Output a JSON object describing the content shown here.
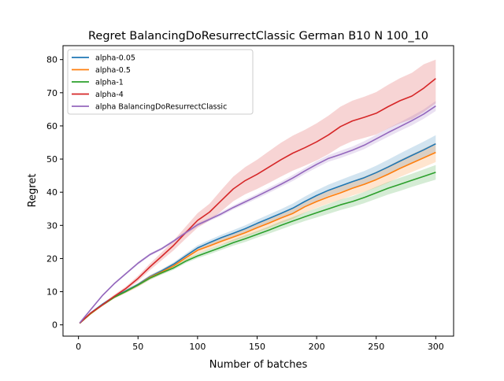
{
  "chart_data": {
    "type": "line",
    "title": "Regret BalancingDoResurrectClassic German B10 N 100_10",
    "xlabel": "Number of batches",
    "ylabel": "Regret",
    "xlim": [
      -13,
      315
    ],
    "ylim": [
      -3.4,
      84.2
    ],
    "xticks": [
      0,
      50,
      100,
      150,
      200,
      250,
      300
    ],
    "yticks": [
      0,
      10,
      20,
      30,
      40,
      50,
      60,
      70,
      80
    ],
    "grid": false,
    "legend_position": "upper-left",
    "series": [
      {
        "name": "alpha-0.05",
        "color": "#1f77b4",
        "x": [
          1,
          10,
          20,
          30,
          40,
          50,
          60,
          70,
          80,
          90,
          100,
          110,
          120,
          130,
          140,
          150,
          160,
          170,
          180,
          190,
          200,
          210,
          220,
          230,
          240,
          250,
          260,
          270,
          280,
          290,
          300
        ],
        "y": [
          0.5,
          3.5,
          6.2,
          8.5,
          10.3,
          12.2,
          14.5,
          16.3,
          18.3,
          20.8,
          23.2,
          24.8,
          26.3,
          27.6,
          29.0,
          30.6,
          32.1,
          33.6,
          35.2,
          37.2,
          39.0,
          40.6,
          41.9,
          43.2,
          44.4,
          45.9,
          47.6,
          49.4,
          51.1,
          52.8,
          54.6
        ],
        "lower": [
          0.4,
          3.2,
          5.9,
          8.2,
          10.0,
          11.8,
          14.0,
          15.8,
          17.7,
          20.1,
          22.4,
          24.0,
          25.4,
          26.6,
          28.0,
          29.5,
          30.9,
          32.3,
          33.8,
          35.7,
          37.4,
          38.9,
          40.1,
          41.3,
          42.4,
          43.8,
          45.4,
          47.1,
          48.7,
          50.3,
          52.0
        ],
        "upper": [
          0.6,
          3.8,
          6.5,
          8.8,
          10.6,
          12.6,
          15.0,
          16.8,
          18.9,
          21.5,
          24.0,
          25.6,
          27.2,
          28.6,
          30.0,
          31.7,
          33.3,
          34.9,
          36.6,
          38.7,
          40.6,
          42.3,
          43.7,
          45.1,
          46.4,
          48.0,
          49.8,
          51.7,
          53.5,
          55.3,
          57.2
        ]
      },
      {
        "name": "alpha-0.5",
        "color": "#ff7f0e",
        "x": [
          1,
          10,
          20,
          30,
          40,
          50,
          60,
          70,
          80,
          90,
          100,
          110,
          120,
          130,
          140,
          150,
          160,
          170,
          180,
          190,
          200,
          210,
          220,
          230,
          240,
          250,
          260,
          270,
          280,
          290,
          300
        ],
        "y": [
          0.5,
          3.3,
          6.0,
          8.3,
          10.1,
          12.0,
          14.3,
          16.0,
          17.8,
          20.2,
          22.5,
          23.8,
          25.2,
          26.5,
          27.8,
          29.3,
          30.7,
          32.2,
          33.6,
          35.6,
          37.2,
          38.6,
          39.8,
          41.2,
          42.4,
          43.8,
          45.4,
          47.2,
          48.8,
          50.4,
          52.0
        ],
        "lower": [
          0.4,
          3.0,
          5.6,
          7.9,
          9.6,
          11.4,
          13.6,
          15.3,
          17.0,
          19.3,
          21.5,
          22.8,
          24.1,
          25.3,
          26.5,
          27.9,
          29.2,
          30.6,
          31.9,
          33.8,
          35.3,
          36.6,
          37.7,
          39.0,
          40.1,
          41.4,
          42.9,
          44.6,
          46.1,
          47.6,
          49.1
        ],
        "upper": [
          0.6,
          3.6,
          6.4,
          8.7,
          10.6,
          12.6,
          15.0,
          16.7,
          18.6,
          21.1,
          23.5,
          24.8,
          26.3,
          27.7,
          29.1,
          30.7,
          32.2,
          33.8,
          35.3,
          37.4,
          39.1,
          40.6,
          41.9,
          43.4,
          44.7,
          46.2,
          47.9,
          49.8,
          51.5,
          53.2,
          54.9
        ]
      },
      {
        "name": "alpha-1",
        "color": "#2ca02c",
        "x": [
          1,
          10,
          20,
          30,
          40,
          50,
          60,
          70,
          80,
          90,
          100,
          110,
          120,
          130,
          140,
          150,
          160,
          170,
          180,
          190,
          200,
          210,
          220,
          230,
          240,
          250,
          260,
          270,
          280,
          290,
          300
        ],
        "y": [
          0.5,
          3.4,
          6.0,
          8.3,
          10.1,
          12.0,
          14.1,
          15.7,
          17.2,
          19.2,
          20.8,
          22.1,
          23.4,
          24.8,
          26.0,
          27.3,
          28.6,
          30.0,
          31.3,
          32.6,
          33.8,
          35.0,
          36.2,
          37.2,
          38.4,
          39.8,
          41.2,
          42.4,
          43.6,
          44.8,
          46.0
        ],
        "lower": [
          0.4,
          3.1,
          5.7,
          8.0,
          9.7,
          11.6,
          13.6,
          15.2,
          16.6,
          18.6,
          20.1,
          21.3,
          22.6,
          23.9,
          25.0,
          26.3,
          27.5,
          28.8,
          30.1,
          31.3,
          32.4,
          33.5,
          34.6,
          35.6,
          36.7,
          38.0,
          39.3,
          40.4,
          41.6,
          42.7,
          43.8
        ],
        "upper": [
          0.6,
          3.7,
          6.3,
          8.6,
          10.5,
          12.4,
          14.6,
          16.2,
          17.8,
          19.8,
          21.5,
          22.9,
          24.2,
          25.7,
          27.0,
          28.3,
          29.7,
          31.2,
          32.5,
          33.9,
          35.2,
          36.5,
          37.8,
          38.8,
          40.1,
          41.6,
          43.1,
          44.4,
          45.6,
          46.9,
          48.2
        ]
      },
      {
        "name": "alpha-4",
        "color": "#d62728",
        "x": [
          1,
          10,
          20,
          30,
          40,
          50,
          60,
          70,
          80,
          90,
          100,
          110,
          120,
          130,
          140,
          150,
          160,
          170,
          180,
          190,
          200,
          210,
          220,
          230,
          240,
          250,
          260,
          270,
          280,
          290,
          300
        ],
        "y": [
          0.5,
          3.5,
          6.0,
          8.6,
          11.0,
          14.0,
          17.5,
          20.7,
          24.0,
          27.8,
          31.5,
          34.0,
          37.5,
          41.0,
          43.5,
          45.4,
          47.6,
          49.8,
          51.8,
          53.4,
          55.2,
          57.3,
          59.8,
          61.5,
          62.6,
          63.8,
          65.8,
          67.6,
          69.0,
          71.4,
          74.3
        ],
        "lower": [
          0.4,
          3.2,
          5.6,
          8.1,
          10.4,
          13.2,
          16.5,
          19.5,
          22.5,
          26.0,
          29.3,
          31.5,
          34.3,
          37.3,
          39.4,
          41.0,
          42.8,
          44.7,
          46.5,
          48.0,
          49.6,
          51.5,
          53.8,
          55.4,
          56.4,
          57.4,
          59.2,
          60.8,
          62.0,
          64.2,
          66.8
        ],
        "upper": [
          0.6,
          3.8,
          6.4,
          9.1,
          11.6,
          14.8,
          18.5,
          21.9,
          25.5,
          29.6,
          33.7,
          36.5,
          40.7,
          44.7,
          47.6,
          49.8,
          52.4,
          54.9,
          57.1,
          58.8,
          60.8,
          63.1,
          65.8,
          67.6,
          68.8,
          70.2,
          72.4,
          74.4,
          76.0,
          78.6,
          80.0
        ]
      },
      {
        "name": "alpha BalancingDoResurrectClassic",
        "color": "#9467bd",
        "x": [
          1,
          10,
          20,
          30,
          40,
          50,
          60,
          70,
          80,
          90,
          100,
          110,
          120,
          130,
          140,
          150,
          160,
          170,
          180,
          190,
          200,
          210,
          220,
          230,
          240,
          250,
          260,
          270,
          280,
          290,
          300
        ],
        "y": [
          0.6,
          4.5,
          8.8,
          12.4,
          15.5,
          18.6,
          21.2,
          23.0,
          25.3,
          27.8,
          30.2,
          31.8,
          33.5,
          35.4,
          37.1,
          38.8,
          40.6,
          42.4,
          44.3,
          46.4,
          48.4,
          50.2,
          51.4,
          52.7,
          54.2,
          56.1,
          58.0,
          59.8,
          61.6,
          63.6,
          66.0
        ],
        "lower": [
          0.5,
          4.3,
          8.5,
          12.1,
          15.2,
          18.2,
          20.8,
          22.6,
          24.9,
          27.3,
          29.7,
          31.3,
          32.9,
          34.8,
          36.4,
          38.1,
          39.8,
          41.6,
          43.4,
          45.5,
          47.4,
          49.2,
          50.3,
          51.6,
          53.0,
          54.9,
          56.7,
          58.5,
          60.2,
          62.2,
          64.5
        ],
        "upper": [
          0.7,
          4.7,
          9.1,
          12.7,
          15.8,
          19.0,
          21.6,
          23.4,
          25.7,
          28.3,
          30.7,
          32.3,
          34.1,
          36.0,
          37.8,
          39.5,
          41.4,
          43.2,
          45.2,
          47.3,
          49.4,
          51.2,
          52.5,
          53.8,
          55.4,
          57.3,
          59.3,
          61.1,
          63.0,
          65.0,
          67.5
        ]
      }
    ]
  }
}
